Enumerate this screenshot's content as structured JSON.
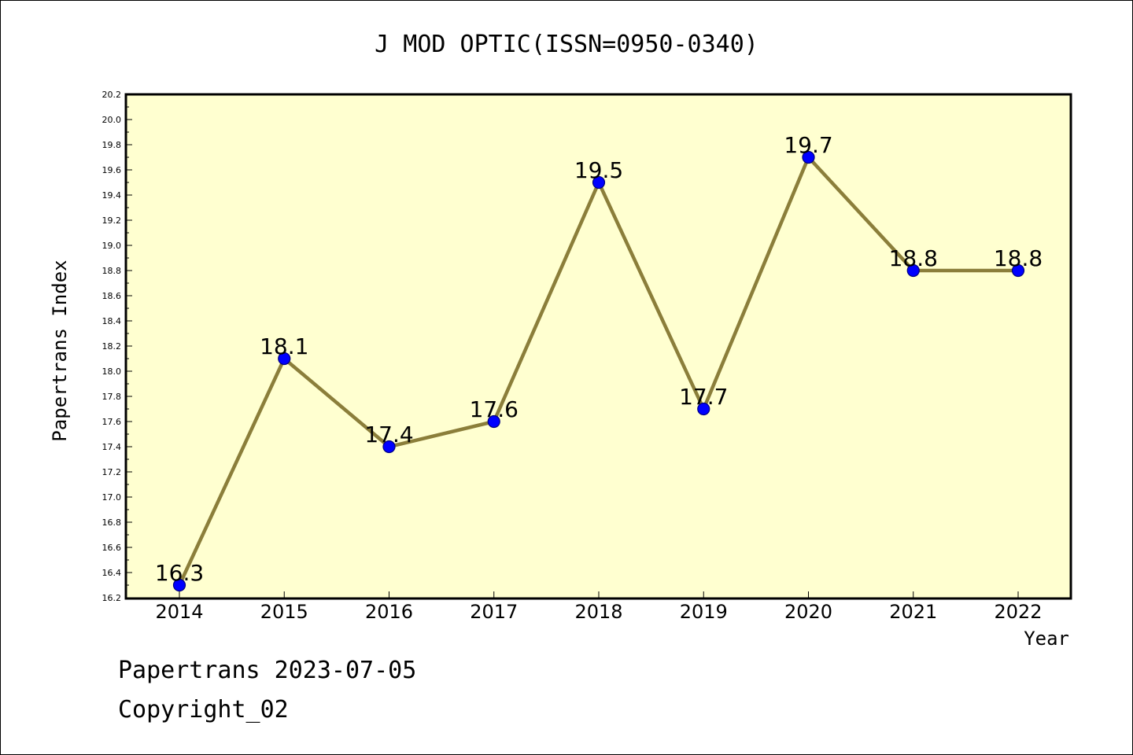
{
  "chart_data": {
    "type": "line",
    "title": "J MOD OPTIC(ISSN=0950-0340)",
    "xlabel": "Year",
    "ylabel": "Papertrans Index",
    "categories": [
      "2014",
      "2015",
      "2016",
      "2017",
      "2018",
      "2019",
      "2020",
      "2021",
      "2022"
    ],
    "series": [
      {
        "values": [
          16.3,
          18.1,
          17.4,
          17.6,
          19.5,
          17.7,
          19.7,
          18.8,
          18.8
        ],
        "data_labels": [
          "16.3",
          "18.1",
          "17.4",
          "17.6",
          "19.5",
          "17.7",
          "19.7",
          "18.8",
          "18.8"
        ]
      }
    ],
    "ylim": [
      16.2,
      20.2
    ],
    "yticks": [
      "16.2",
      "16.4",
      "16.6",
      "16.8",
      "17.0",
      "17.2",
      "17.4",
      "17.6",
      "17.8",
      "18.0",
      "18.2",
      "18.4",
      "18.6",
      "18.8",
      "19.0",
      "19.2",
      "19.4",
      "19.6",
      "19.8",
      "20.0",
      "20.2"
    ],
    "grid": false,
    "legend": "none",
    "colors": {
      "plot_background": "#ffffd0",
      "line": "#8b7e3a",
      "marker_fill": "#0000ff",
      "marker_edge": "#000080",
      "axes": "#000000"
    }
  },
  "footer": {
    "line1": "Papertrans 2023-07-05",
    "line2": "Copyright_02"
  }
}
